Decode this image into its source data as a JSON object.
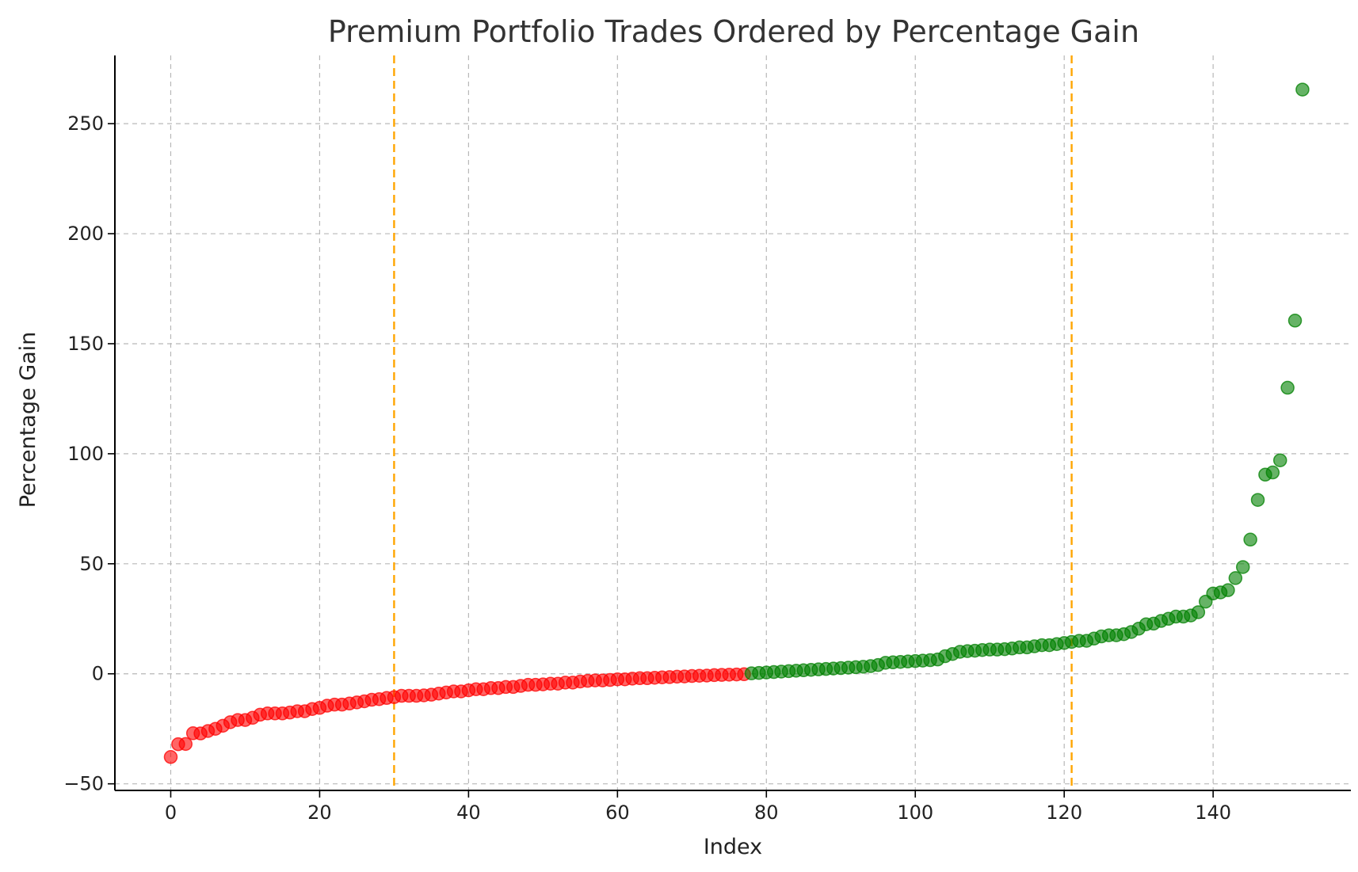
{
  "chart_data": {
    "type": "scatter",
    "title": "Premium Portfolio Trades Ordered by Percentage Gain",
    "xlabel": "Index",
    "ylabel": "Percentage Gain",
    "xlim": [
      -7.5,
      158.5
    ],
    "ylim": [
      -53,
      281
    ],
    "xticks": [
      0,
      20,
      40,
      60,
      80,
      100,
      120,
      140
    ],
    "yticks": [
      -50,
      0,
      50,
      100,
      150,
      200,
      250
    ],
    "grid": true,
    "colors": {
      "loss": "#ff0000",
      "gain": "#008000",
      "reference_line": "#ffa500"
    },
    "reference_lines_x": [
      30,
      121
    ],
    "points_y": [
      -37.8,
      -32,
      -31.9,
      -27,
      -27.1,
      -26,
      -25,
      -23.6,
      -22,
      -21,
      -21,
      -20,
      -18.6,
      -18,
      -18,
      -18,
      -17.6,
      -17,
      -17,
      -16,
      -15.5,
      -14.5,
      -14,
      -14,
      -13.5,
      -13,
      -12.5,
      -11.8,
      -11.5,
      -11,
      -10.6,
      -10,
      -10,
      -10,
      -9.8,
      -9.5,
      -9,
      -8.5,
      -8,
      -8,
      -7.5,
      -7,
      -7,
      -6.5,
      -6.5,
      -6,
      -6,
      -5.5,
      -5,
      -5,
      -4.8,
      -4.5,
      -4.5,
      -4,
      -4,
      -3.5,
      -3.2,
      -3,
      -3,
      -2.8,
      -2.5,
      -2.5,
      -2.2,
      -2,
      -2,
      -1.8,
      -1.6,
      -1.5,
      -1.3,
      -1.2,
      -1,
      -0.9,
      -0.8,
      -0.6,
      -0.5,
      -0.4,
      -0.3,
      -0.2,
      0.2,
      0.4,
      0.6,
      0.8,
      1,
      1.2,
      1.4,
      1.6,
      1.8,
      2,
      2.2,
      2.4,
      2.6,
      2.8,
      3,
      3.2,
      3.5,
      4,
      5,
      5.2,
      5.4,
      5.6,
      5.8,
      6,
      6.2,
      6.5,
      8,
      9,
      10,
      10.3,
      10.5,
      10.8,
      11,
      11,
      11.2,
      11.5,
      12,
      12,
      12.5,
      13,
      13,
      13.5,
      14,
      14.5,
      15,
      15,
      16,
      17,
      17.5,
      17.5,
      18,
      19,
      20.5,
      22.5,
      22.8,
      24,
      25,
      26,
      26,
      26.5,
      28,
      32.8,
      36.5,
      37,
      38,
      43.5,
      48.5,
      61,
      79,
      90.5,
      91.5,
      97,
      130,
      160.5,
      265.5
    ]
  }
}
